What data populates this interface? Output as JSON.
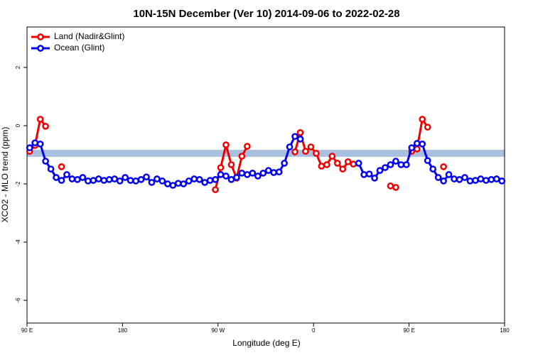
{
  "chart_data": {
    "type": "line",
    "title": "10N-15N December (Ver 10)   2014-09-06 to 2022-02-28",
    "x_label": "Longitude (deg E)",
    "y_label": "XCO2 - MLO trend (ppm)",
    "xlim": [
      90,
      540
    ],
    "ylim": [
      -6.78,
      3.39
    ],
    "xticks": [
      {
        "value": 90,
        "label": "90 E"
      },
      180,
      {
        "value": 270,
        "label": "90 W"
      },
      {
        "value": 360,
        "label": "0"
      },
      {
        "value": 450,
        "label": "90 E"
      },
      {
        "value": 540,
        "label": "180"
      }
    ],
    "yticks": [
      -6,
      -4,
      -2,
      0,
      2
    ],
    "reference_band": {
      "range": [
        -1.07,
        -0.83
      ],
      "color": "#a9bfe0"
    },
    "legend": "top-left",
    "x": [
      92.5,
      97.5,
      102.5,
      107.5,
      112.5,
      117.5,
      122.5,
      127.5,
      132.5,
      137.5,
      142.5,
      147.5,
      152.5,
      157.5,
      162.5,
      167.5,
      172.5,
      177.5,
      182.5,
      187.5,
      192.5,
      197.5,
      202.5,
      207.5,
      212.5,
      217.5,
      222.5,
      227.5,
      232.5,
      237.5,
      242.5,
      247.5,
      252.5,
      257.5,
      262.5,
      267.5,
      272.5,
      277.5,
      282.5,
      287.5,
      292.5,
      297.5,
      302.5,
      307.5,
      312.5,
      317.5,
      322.5,
      327.5,
      332.5,
      337.5,
      342.5,
      347.5,
      352.5,
      357.5,
      362.5,
      367.5,
      372.5,
      377.5,
      382.5,
      387.5,
      392.5,
      397.5,
      402.5,
      407.5,
      412.5,
      417.5,
      422.5,
      427.5,
      432.5,
      437.5,
      442.5,
      447.5,
      452.5,
      457.5,
      462.5,
      467.5,
      472.5,
      477.5,
      482.5,
      487.5,
      492.5,
      497.5,
      502.5,
      507.5,
      512.5,
      517.5,
      522.5,
      527.5,
      532.5,
      537.5
    ],
    "series": [
      {
        "name": "Land (Nadir&Glint)",
        "color": "#ee0000",
        "values": [
          -0.88,
          -0.68,
          0.22,
          -0.02,
          null,
          null,
          -1.41,
          null,
          null,
          null,
          null,
          null,
          null,
          null,
          null,
          null,
          null,
          null,
          null,
          null,
          null,
          null,
          null,
          null,
          null,
          null,
          null,
          null,
          null,
          null,
          null,
          null,
          null,
          null,
          null,
          -2.2,
          -1.44,
          -0.66,
          -1.34,
          -1.8,
          -1.05,
          -0.71,
          null,
          null,
          null,
          null,
          null,
          null,
          null,
          null,
          -0.9,
          -0.24,
          -0.88,
          -0.73,
          -0.95,
          -1.39,
          -1.34,
          -1.05,
          -1.29,
          -1.49,
          -1.24,
          -1.32,
          null,
          null,
          null,
          null,
          null,
          null,
          -2.07,
          -2.12,
          null,
          null,
          -0.88,
          -0.8,
          0.22,
          -0.05,
          null,
          null,
          -1.41,
          null,
          null,
          null,
          null,
          null,
          null,
          null,
          null,
          null,
          null,
          null
        ]
      },
      {
        "name": "Ocean (Glint)",
        "color": "#0000ee",
        "values": [
          -0.76,
          -0.59,
          -0.63,
          -1.22,
          -1.49,
          -1.78,
          -1.88,
          -1.68,
          -1.83,
          -1.85,
          -1.78,
          -1.9,
          -1.88,
          -1.83,
          -1.88,
          -1.85,
          -1.83,
          -1.9,
          -1.78,
          -1.88,
          -1.9,
          -1.85,
          -1.76,
          -1.95,
          -1.83,
          -1.9,
          -2.0,
          -2.05,
          -1.98,
          -2.0,
          -1.9,
          -1.83,
          -1.85,
          -1.95,
          -1.88,
          -1.85,
          -1.68,
          -1.73,
          -1.85,
          -1.78,
          -1.63,
          -1.68,
          -1.63,
          -1.73,
          -1.63,
          -1.54,
          -1.61,
          -1.59,
          -1.29,
          -0.73,
          -0.37,
          -0.46,
          null,
          null,
          null,
          null,
          null,
          null,
          null,
          null,
          null,
          null,
          -1.29,
          -1.68,
          -1.66,
          -1.8,
          -1.54,
          -1.44,
          -1.34,
          -1.22,
          -1.34,
          -1.34,
          -0.76,
          -0.61,
          -0.63,
          -1.2,
          -1.49,
          -1.78,
          -1.9,
          -1.68,
          -1.83,
          -1.85,
          -1.78,
          -1.9,
          -1.88,
          -1.83,
          -1.88,
          -1.85,
          -1.83,
          -1.9
        ]
      }
    ]
  }
}
